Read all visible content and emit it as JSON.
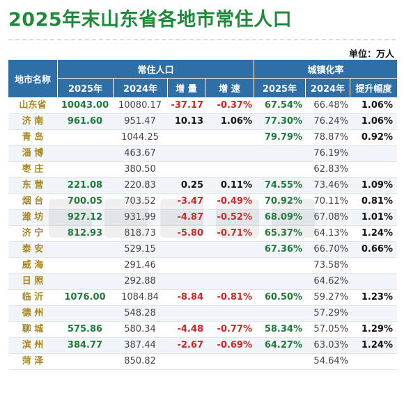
{
  "title": "2025年末山东省各地市常住人口",
  "unit": "单位：万人",
  "header": {
    "region": "地市名称",
    "population_group": "常住人口",
    "urbanization_group": "城镇化率",
    "p2025": "2025年",
    "p2024": "2024年",
    "increase": "增 量",
    "growth": "增 速",
    "u2025": "2025年",
    "u2024": "2024年",
    "uplift": "提升幅度"
  },
  "rows": [
    {
      "name": "山东省",
      "p2025": "10043.00",
      "p2024": "10080.17",
      "inc": "-37.17",
      "rate": "-0.37%",
      "u2025": "67.54%",
      "u2024": "66.48%",
      "up": "1.06%"
    },
    {
      "name": "济 南",
      "p2025": "961.60",
      "p2024": "951.47",
      "inc": "10.13",
      "rate": "1.06%",
      "u2025": "77.30%",
      "u2024": "76.24%",
      "up": "1.06%"
    },
    {
      "name": "青 岛",
      "p2025": "",
      "p2024": "1044.25",
      "inc": "",
      "rate": "",
      "u2025": "79.79%",
      "u2024": "78.87%",
      "up": "0.92%"
    },
    {
      "name": "淄 博",
      "p2025": "",
      "p2024": "463.67",
      "inc": "",
      "rate": "",
      "u2025": "",
      "u2024": "76.19%",
      "up": ""
    },
    {
      "name": "枣 庄",
      "p2025": "",
      "p2024": "380.50",
      "inc": "",
      "rate": "",
      "u2025": "",
      "u2024": "62.83%",
      "up": ""
    },
    {
      "name": "东 营",
      "p2025": "221.08",
      "p2024": "220.83",
      "inc": "0.25",
      "rate": "0.11%",
      "u2025": "74.55%",
      "u2024": "73.46%",
      "up": "1.09%"
    },
    {
      "name": "烟 台",
      "p2025": "700.05",
      "p2024": "703.52",
      "inc": "-3.47",
      "rate": "-0.49%",
      "u2025": "70.92%",
      "u2024": "70.11%",
      "up": "0.81%"
    },
    {
      "name": "潍 坊",
      "p2025": "927.12",
      "p2024": "931.99",
      "inc": "-4.87",
      "rate": "-0.52%",
      "u2025": "68.09%",
      "u2024": "67.08%",
      "up": "1.01%"
    },
    {
      "name": "济 宁",
      "p2025": "812.93",
      "p2024": "818.73",
      "inc": "-5.80",
      "rate": "-0.71%",
      "u2025": "65.37%",
      "u2024": "64.13%",
      "up": "1.24%"
    },
    {
      "name": "泰 安",
      "p2025": "",
      "p2024": "529.15",
      "inc": "",
      "rate": "",
      "u2025": "67.36%",
      "u2024": "66.70%",
      "up": "0.66%"
    },
    {
      "name": "威 海",
      "p2025": "",
      "p2024": "291.46",
      "inc": "",
      "rate": "",
      "u2025": "",
      "u2024": "73.58%",
      "up": ""
    },
    {
      "name": "日 照",
      "p2025": "",
      "p2024": "292.88",
      "inc": "",
      "rate": "",
      "u2025": "",
      "u2024": "64.62%",
      "up": ""
    },
    {
      "name": "临 沂",
      "p2025": "1076.00",
      "p2024": "1084.84",
      "inc": "-8.84",
      "rate": "-0.81%",
      "u2025": "60.50%",
      "u2024": "59.27%",
      "up": "1.23%"
    },
    {
      "name": "德 州",
      "p2025": "",
      "p2024": "548.28",
      "inc": "",
      "rate": "",
      "u2025": "",
      "u2024": "57.29%",
      "up": ""
    },
    {
      "name": "聊 城",
      "p2025": "575.86",
      "p2024": "580.34",
      "inc": "-4.48",
      "rate": "-0.77%",
      "u2025": "58.34%",
      "u2024": "57.05%",
      "up": "1.29%"
    },
    {
      "name": "滨 州",
      "p2025": "384.77",
      "p2024": "387.44",
      "inc": "-2.67",
      "rate": "-0.69%",
      "u2025": "64.27%",
      "u2024": "63.03%",
      "up": "1.24%"
    },
    {
      "name": "菏 泽",
      "p2025": "",
      "p2024": "850.82",
      "inc": "",
      "rate": "",
      "u2025": "",
      "u2024": "54.64%",
      "up": ""
    }
  ],
  "colors": {
    "title": "#1f8a3c",
    "header_bg": "#2f6fa8",
    "region_name": "#a8861c",
    "value_green": "#1f7a38",
    "negative_red": "#d12424"
  }
}
